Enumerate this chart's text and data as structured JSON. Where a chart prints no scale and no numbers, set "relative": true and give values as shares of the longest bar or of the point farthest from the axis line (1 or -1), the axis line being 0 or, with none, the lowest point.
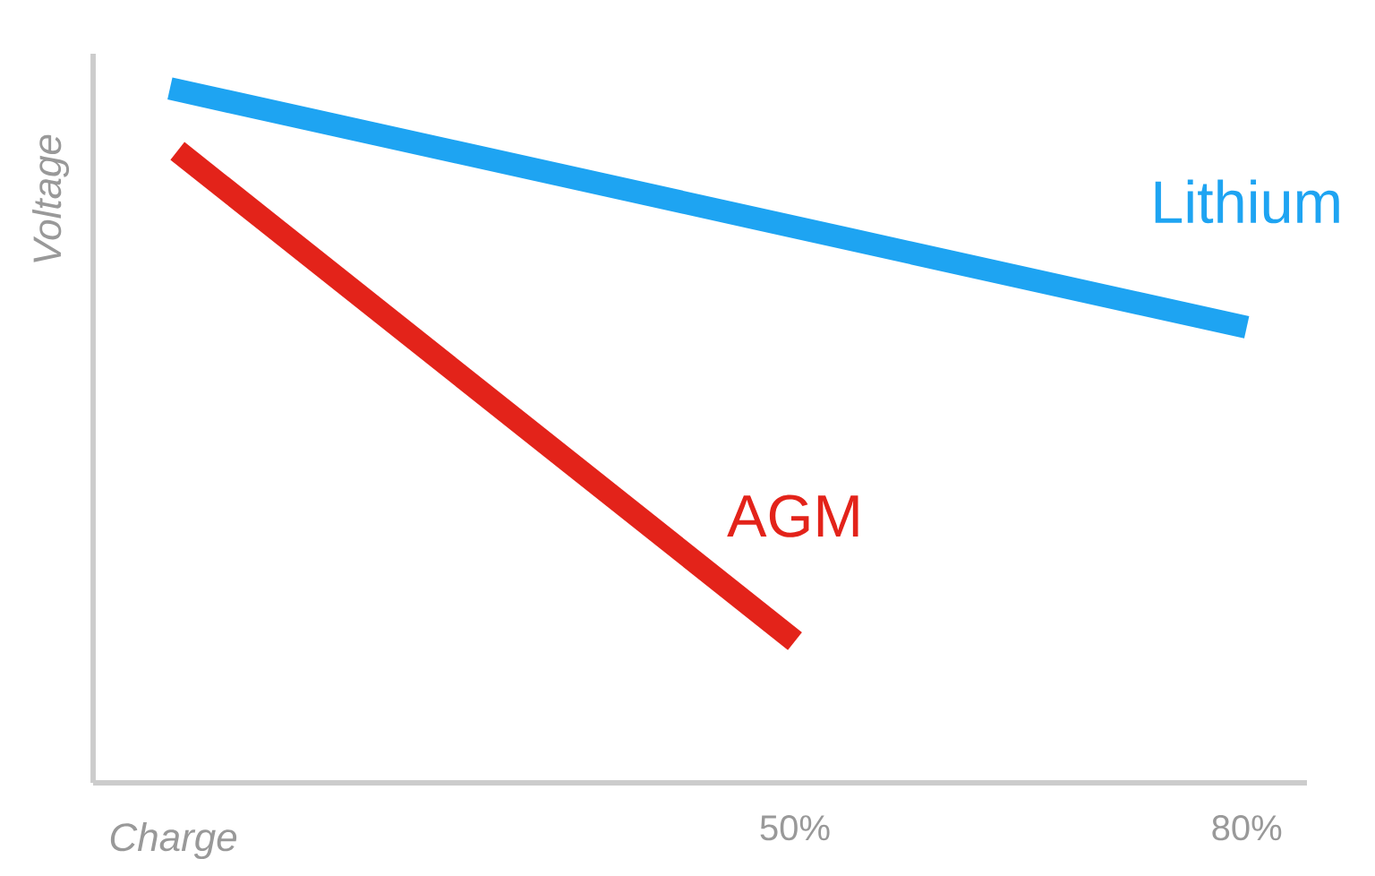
{
  "chart_data": {
    "type": "line",
    "relative": true,
    "xlabel": "Charge",
    "ylabel": "Voltage",
    "xlim": [
      3.4,
      84
    ],
    "xticks": [
      {
        "value": 50,
        "label": "50%"
      },
      {
        "value": 80,
        "label": "80%"
      }
    ],
    "legend": false,
    "marker": "none",
    "line_style": "solid",
    "series": [
      {
        "name": "Lithium",
        "color": "#1ea4f2",
        "x": [
          8.5,
          80
        ],
        "values": [
          1,
          0.656
        ]
      },
      {
        "name": "AGM",
        "color": "#e3231a",
        "x": [
          9,
          50
        ],
        "values": [
          0.91,
          0.204
        ]
      }
    ]
  }
}
